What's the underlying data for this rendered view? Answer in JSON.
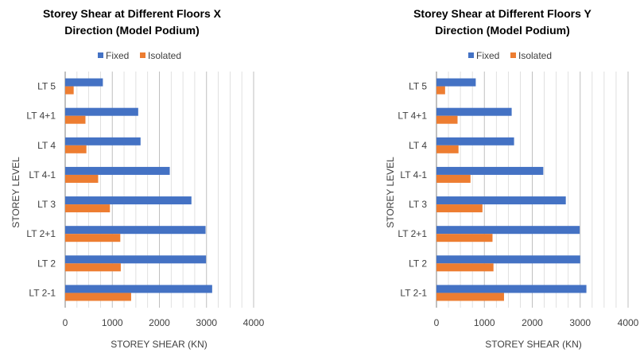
{
  "colors": {
    "fixed": "#4472C4",
    "isolated": "#ED7D31",
    "grid": "#D9D9D9",
    "axis": "#808080"
  },
  "chart_data": [
    {
      "type": "bar",
      "orientation": "horizontal",
      "title_lines": [
        "Storey Shear at Different Floors X",
        "Direction (Model Podium)"
      ],
      "xlabel": "STOREY SHEAR (KN)",
      "ylabel": "STOREY LEVEL",
      "xlim": [
        0,
        4000
      ],
      "xticks": [
        "0",
        "1000",
        "2000",
        "3000",
        "4000"
      ],
      "grid": "vertical",
      "legend_placement": "top",
      "categories": [
        "LT 5",
        "LT 4+1",
        "LT 4",
        "LT 4-1",
        "LT 3",
        "LT 2+1",
        "LT 2",
        "LT 2-1"
      ],
      "series": [
        {
          "name": "Fixed",
          "values": [
            800,
            1550,
            1600,
            2220,
            2680,
            2980,
            2990,
            3120
          ]
        },
        {
          "name": "Isolated",
          "values": [
            180,
            430,
            450,
            700,
            950,
            1170,
            1180,
            1400
          ]
        }
      ]
    },
    {
      "type": "bar",
      "orientation": "horizontal",
      "title_lines": [
        "Storey Shear at Different Floors Y",
        "Direction (Model Podium)"
      ],
      "xlabel": "STOREY SHEAR (KN)",
      "ylabel": "STOREY LEVEL",
      "xlim": [
        0,
        4000
      ],
      "xticks": [
        "0",
        "1000",
        "2000",
        "3000",
        "4000"
      ],
      "grid": "vertical",
      "legend_placement": "top",
      "categories": [
        "LT 5",
        "LT 4+1",
        "LT 4",
        "LT 4-1",
        "LT 3",
        "LT 2+1",
        "LT 2",
        "LT 2-1"
      ],
      "series": [
        {
          "name": "Fixed",
          "values": [
            820,
            1570,
            1620,
            2230,
            2700,
            2990,
            3000,
            3130
          ]
        },
        {
          "name": "Isolated",
          "values": [
            180,
            440,
            460,
            710,
            960,
            1170,
            1190,
            1410
          ]
        }
      ]
    }
  ]
}
